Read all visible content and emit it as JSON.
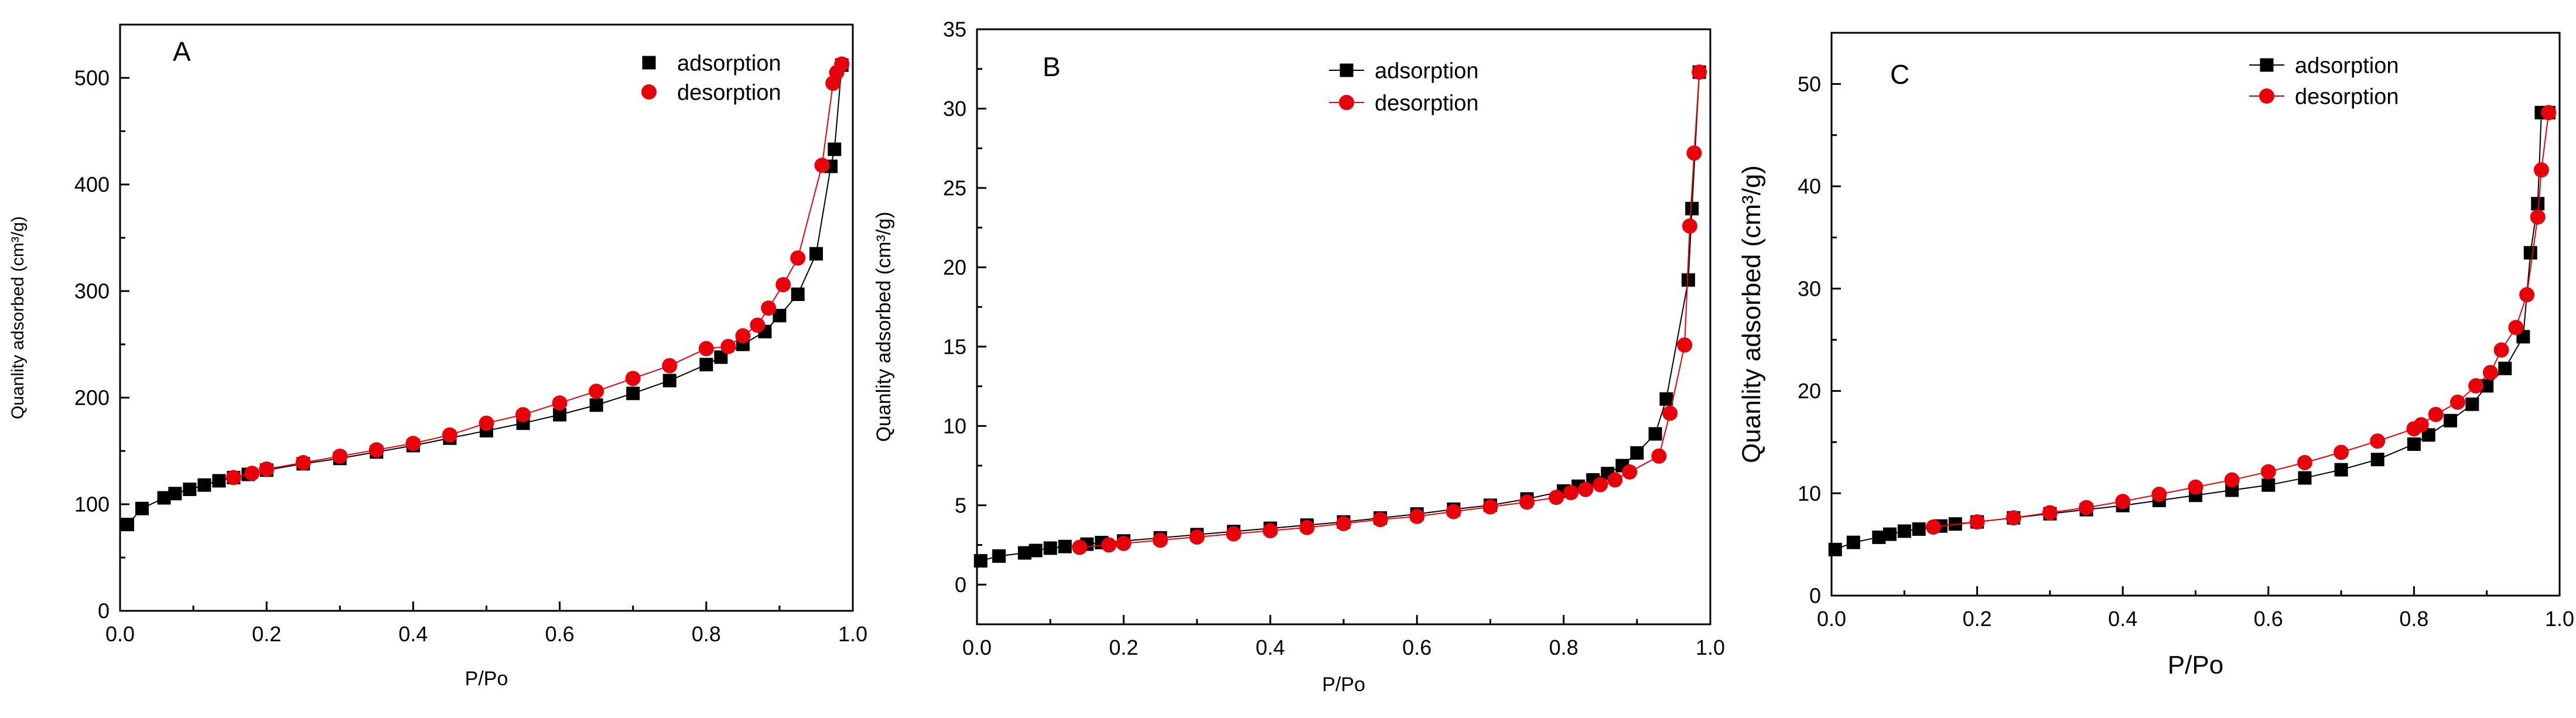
{
  "chart_data": [
    {
      "type": "scatter",
      "panel_label": "A",
      "xlabel": "P/Po",
      "ylabel": "Quanlity adsorbed (cm³/g)",
      "xlim": [
        0,
        1.0
      ],
      "ylim": [
        0,
        550
      ],
      "xticks": [
        0.0,
        0.2,
        0.4,
        0.6,
        0.8,
        1.0
      ],
      "yticks": [
        0,
        100,
        200,
        300,
        400,
        500
      ],
      "legend_position": "top-right",
      "series": [
        {
          "name": "adsorption",
          "color": "#000000",
          "marker": "square",
          "x": [
            0.01,
            0.03,
            0.06,
            0.075,
            0.095,
            0.115,
            0.135,
            0.155,
            0.175,
            0.2,
            0.25,
            0.3,
            0.35,
            0.4,
            0.45,
            0.5,
            0.55,
            0.6,
            0.65,
            0.7,
            0.75,
            0.8,
            0.82,
            0.85,
            0.88,
            0.9,
            0.925,
            0.95,
            0.97,
            0.975,
            0.985
          ],
          "y": [
            81,
            96,
            106,
            110,
            114,
            118,
            122,
            125,
            128,
            132,
            138,
            143,
            149,
            155,
            162,
            169,
            176,
            184,
            193,
            204,
            216,
            231,
            238,
            250,
            262,
            277,
            297,
            335,
            417,
            433,
            512
          ]
        },
        {
          "name": "desorption",
          "color": "#e8000b",
          "marker": "circle",
          "x": [
            0.985,
            0.978,
            0.973,
            0.958,
            0.925,
            0.905,
            0.885,
            0.87,
            0.85,
            0.83,
            0.8,
            0.75,
            0.7,
            0.65,
            0.6,
            0.55,
            0.5,
            0.45,
            0.4,
            0.35,
            0.3,
            0.25,
            0.2,
            0.18,
            0.155
          ],
          "y": [
            513,
            505,
            495,
            418,
            331,
            306,
            284,
            268,
            258,
            248,
            246,
            230,
            218,
            206,
            195,
            184,
            176,
            165,
            157,
            151,
            145,
            139,
            133,
            129,
            125
          ]
        }
      ]
    },
    {
      "type": "line",
      "panel_label": "B",
      "xlabel": "P/Po",
      "ylabel": "Quanlity adsorbed (cm³/g)",
      "xlim": [
        0,
        1.0
      ],
      "ylim": [
        -2.5,
        35
      ],
      "xticks": [
        0.0,
        0.2,
        0.4,
        0.6,
        0.8,
        1.0
      ],
      "yticks": [
        0,
        5,
        10,
        15,
        20,
        25,
        30,
        35
      ],
      "legend_position": "top-right",
      "series": [
        {
          "name": "adsorption",
          "color": "#000000",
          "marker": "square",
          "x": [
            0.005,
            0.03,
            0.065,
            0.08,
            0.1,
            0.12,
            0.15,
            0.17,
            0.2,
            0.25,
            0.3,
            0.35,
            0.4,
            0.45,
            0.5,
            0.55,
            0.6,
            0.65,
            0.7,
            0.75,
            0.8,
            0.82,
            0.84,
            0.86,
            0.88,
            0.9,
            0.925,
            0.94,
            0.97,
            0.975,
            0.985
          ],
          "y": [
            1.5,
            1.8,
            2.0,
            2.15,
            2.3,
            2.4,
            2.55,
            2.65,
            2.75,
            2.95,
            3.15,
            3.35,
            3.55,
            3.75,
            3.95,
            4.2,
            4.45,
            4.75,
            5.0,
            5.4,
            5.9,
            6.2,
            6.6,
            7.0,
            7.5,
            8.3,
            9.5,
            11.7,
            19.2,
            23.7,
            32.3
          ]
        },
        {
          "name": "desorption",
          "color": "#e8000b",
          "marker": "circle",
          "x": [
            0.985,
            0.978,
            0.972,
            0.965,
            0.945,
            0.93,
            0.89,
            0.87,
            0.85,
            0.83,
            0.81,
            0.79,
            0.75,
            0.7,
            0.65,
            0.6,
            0.55,
            0.5,
            0.45,
            0.4,
            0.35,
            0.3,
            0.25,
            0.2,
            0.18,
            0.14
          ],
          "y": [
            32.3,
            27.2,
            22.6,
            15.1,
            10.8,
            8.1,
            7.1,
            6.6,
            6.3,
            6.0,
            5.8,
            5.5,
            5.2,
            4.9,
            4.6,
            4.3,
            4.1,
            3.85,
            3.6,
            3.4,
            3.2,
            3.0,
            2.8,
            2.6,
            2.5,
            2.35
          ]
        }
      ]
    },
    {
      "type": "line",
      "panel_label": "C",
      "xlabel": "P/Po",
      "ylabel": "Quanlity adsorbed (cm³/g)",
      "xlim": [
        0,
        1.0
      ],
      "ylim": [
        0,
        55
      ],
      "xticks": [
        0.0,
        0.2,
        0.4,
        0.6,
        0.8,
        1.0
      ],
      "yticks": [
        0,
        10,
        20,
        30,
        40,
        50
      ],
      "legend_position": "top-right",
      "series": [
        {
          "name": "adsorption",
          "color": "#000000",
          "marker": "square",
          "x": [
            0.005,
            0.03,
            0.065,
            0.08,
            0.1,
            0.12,
            0.15,
            0.17,
            0.2,
            0.25,
            0.3,
            0.35,
            0.4,
            0.45,
            0.5,
            0.55,
            0.6,
            0.65,
            0.7,
            0.75,
            0.8,
            0.82,
            0.85,
            0.88,
            0.9,
            0.925,
            0.95,
            0.96,
            0.97,
            0.975,
            0.985
          ],
          "y": [
            4.5,
            5.2,
            5.7,
            6.0,
            6.3,
            6.5,
            6.8,
            7.0,
            7.2,
            7.6,
            8.0,
            8.4,
            8.8,
            9.3,
            9.8,
            10.3,
            10.8,
            11.5,
            12.3,
            13.3,
            14.8,
            15.7,
            17.1,
            18.7,
            20.5,
            22.2,
            25.3,
            33.5,
            38.3,
            47.2,
            47.2
          ]
        },
        {
          "name": "desorption",
          "color": "#e8000b",
          "marker": "circle",
          "x": [
            0.985,
            0.975,
            0.97,
            0.955,
            0.94,
            0.92,
            0.905,
            0.885,
            0.86,
            0.83,
            0.81,
            0.8,
            0.75,
            0.7,
            0.65,
            0.6,
            0.55,
            0.5,
            0.45,
            0.4,
            0.35,
            0.3,
            0.25,
            0.2,
            0.14
          ],
          "y": [
            47.2,
            41.6,
            37.0,
            29.4,
            26.2,
            24.0,
            21.8,
            20.5,
            18.9,
            17.7,
            16.7,
            16.3,
            15.1,
            14.0,
            13.0,
            12.1,
            11.3,
            10.6,
            9.9,
            9.2,
            8.6,
            8.1,
            7.6,
            7.2,
            6.7
          ]
        }
      ]
    }
  ]
}
